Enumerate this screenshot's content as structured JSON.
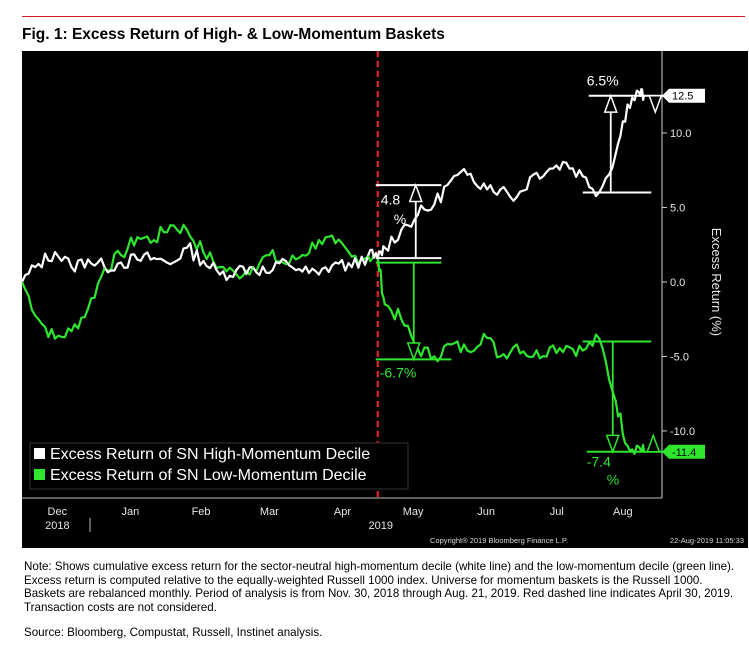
{
  "title": "Fig. 1: Excess Return of High- & Low-Momentum Baskets",
  "note": "Note: Shows cumulative excess return for the sector-neutral high-momentum decile (white line) and the low-momentum decile (green line). Excess return is computed relative to the equally-weighted Russell 1000 index. Universe for momentum baskets is the Russell 1000. Baskets are rebalanced monthly. Period of analysis is from Nov. 30, 2018 through Aug. 21, 2019. Red dashed line indicates April 30, 2019. Transaction costs are not considered.",
  "source": "Source: Bloomberg, Compustat, Russell, Instinet analysis.",
  "copyright": "Copyright® 2019 Bloomberg Finance L.P.",
  "timestamp": "22-Aug-2019 11:05:33",
  "colors": {
    "high": "#ffffff",
    "low": "#2ee62e",
    "marker": "#e8202a",
    "background": "#000000"
  },
  "chart_data": {
    "type": "line",
    "title": "Fig. 1: Excess Return of High- & Low-Momentum Baskets",
    "xlabel": "",
    "ylabel": "Excess Return (%)",
    "ylim": [
      -14.5,
      15.5
    ],
    "grid": false,
    "legend_position": "bottom-left",
    "month_ticks": [
      "Dec",
      "Jan",
      "Feb",
      "Mar",
      "Apr",
      "May",
      "Jun",
      "Jul",
      "Aug"
    ],
    "year_labels": [
      "2018",
      "2019"
    ],
    "y_ticks": [
      10.0,
      5.0,
      0.0,
      -5.0,
      -10.0
    ],
    "y_tick_labels": [
      "10.0",
      "5.0",
      "0.0",
      "-5.0",
      "-10.0"
    ],
    "last_value_labels": [
      "12.5",
      "-11.4"
    ],
    "marker_line_date": "2019-04-30",
    "x": [
      "2018-11-30",
      "2018-12-07",
      "2018-12-14",
      "2018-12-21",
      "2018-12-28",
      "2019-01-04",
      "2019-01-11",
      "2019-01-18",
      "2019-01-25",
      "2019-02-01",
      "2019-02-08",
      "2019-02-15",
      "2019-02-22",
      "2019-03-01",
      "2019-03-08",
      "2019-03-15",
      "2019-03-22",
      "2019-03-29",
      "2019-04-05",
      "2019-04-12",
      "2019-04-19",
      "2019-04-26",
      "2019-04-30",
      "2019-05-03",
      "2019-05-10",
      "2019-05-17",
      "2019-05-24",
      "2019-05-31",
      "2019-06-07",
      "2019-06-14",
      "2019-06-21",
      "2019-06-28",
      "2019-07-05",
      "2019-07-12",
      "2019-07-19",
      "2019-07-26",
      "2019-08-02",
      "2019-08-09",
      "2019-08-14",
      "2019-08-19",
      "2019-08-21"
    ],
    "series": [
      {
        "name": "Excess Return of SN High-Momentum Decile",
        "values": [
          0.0,
          1.2,
          2.0,
          1.0,
          1.5,
          1.0,
          1.3,
          1.5,
          1.6,
          1.2,
          2.3,
          1.4,
          0.5,
          0.8,
          1.0,
          0.6,
          1.4,
          0.7,
          0.5,
          1.3,
          1.0,
          1.8,
          1.6,
          2.3,
          3.5,
          4.5,
          5.2,
          6.8,
          7.2,
          6.6,
          6.2,
          5.7,
          7.2,
          7.6,
          8.0,
          7.1,
          6.0,
          8.6,
          11.9,
          12.7,
          12.5
        ]
      },
      {
        "name": "Excess Return of SN Low-Momentum Decile",
        "values": [
          0.0,
          -2.5,
          -3.8,
          -3.3,
          -1.8,
          0.9,
          1.8,
          3.0,
          2.8,
          3.8,
          3.5,
          2.0,
          1.0,
          0.5,
          1.0,
          1.8,
          1.2,
          1.8,
          2.8,
          2.6,
          1.7,
          1.7,
          1.6,
          -1.5,
          -2.5,
          -4.5,
          -5.0,
          -4.2,
          -4.6,
          -3.5,
          -5.0,
          -4.2,
          -5.0,
          -4.4,
          -4.3,
          -4.6,
          -3.8,
          -8.0,
          -11.0,
          -11.1,
          -11.4
        ]
      }
    ],
    "annotations": {
      "high_may": {
        "text": "4.8 %",
        "line1": "4.8",
        "line2": "%"
      },
      "low_may": {
        "text": "-6.7%"
      },
      "high_aug": {
        "text": "6.5%"
      },
      "low_aug": {
        "text": "-7.4 %",
        "line1": "-7.4",
        "line2": "%"
      }
    }
  }
}
